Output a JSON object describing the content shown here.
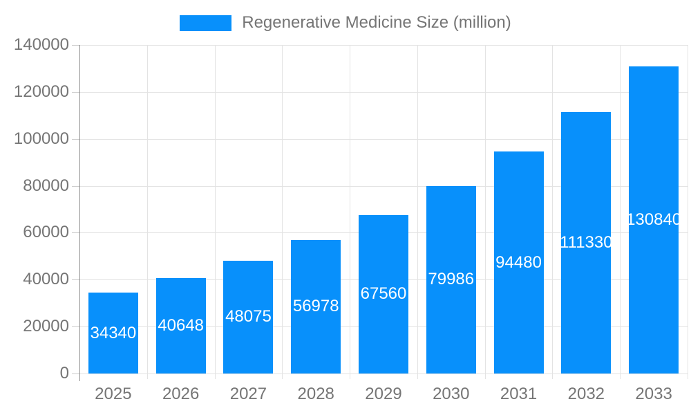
{
  "chart_data": {
    "type": "bar",
    "title": "Regenerative Medicine Size (million)",
    "categories": [
      "2025",
      "2026",
      "2027",
      "2028",
      "2029",
      "2030",
      "2031",
      "2032",
      "2033"
    ],
    "values": [
      34340,
      40648,
      48075,
      56978,
      67560,
      79986,
      94480,
      111330,
      130840
    ],
    "value_labels": [
      "34340",
      "40648",
      "48075",
      "56978",
      "67560",
      "79986",
      "94480",
      "111330",
      "130840"
    ],
    "xlabel": "",
    "ylabel": "",
    "ylim": [
      0,
      140000
    ],
    "yticks": [
      0,
      20000,
      40000,
      60000,
      80000,
      100000,
      120000,
      140000
    ],
    "ytick_labels": [
      "0",
      "20000",
      "40000",
      "60000",
      "80000",
      "100000",
      "120000",
      "140000"
    ],
    "grid": true,
    "legend_position": "top-center",
    "colors": {
      "bar": "#0890fb",
      "value_label_text": "#ffffff",
      "axis_text": "#757575",
      "gridline": "#e3e3e3",
      "tick": "#cccccc",
      "axis_line": "#8f8f8f",
      "background": "#ffffff"
    }
  }
}
